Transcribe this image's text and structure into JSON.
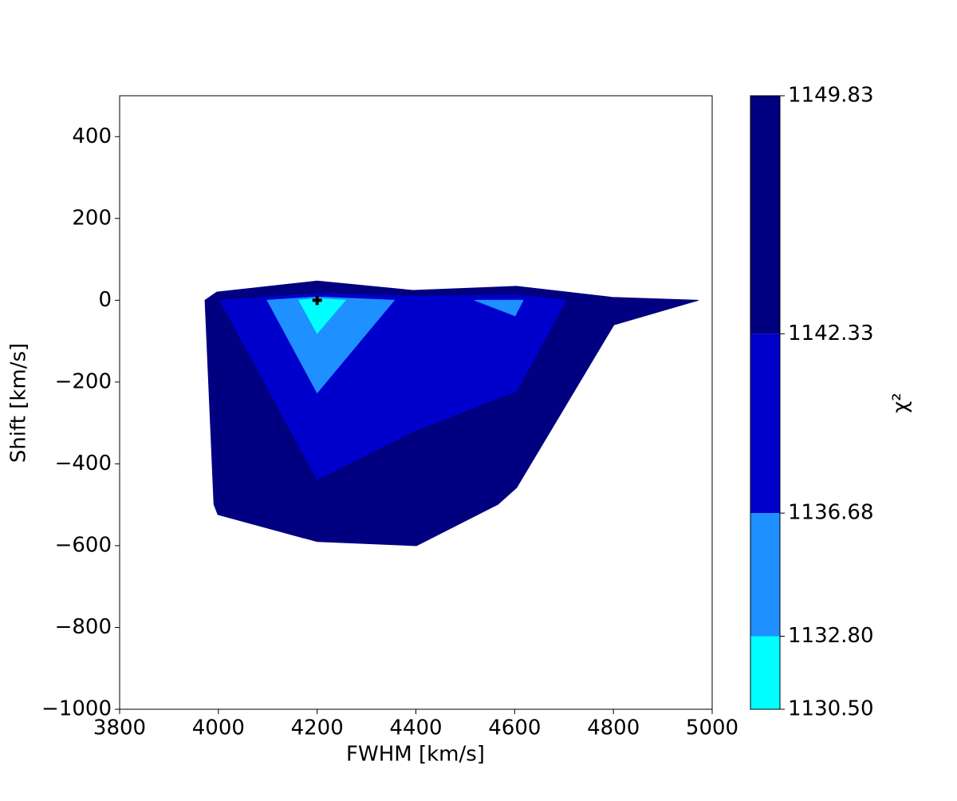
{
  "chart_data": {
    "type": "contour",
    "xlabel": "FWHM [km/s]",
    "ylabel": "Shift [km/s]",
    "colorbar_label": "χ²",
    "xlim": [
      3800,
      5000
    ],
    "xticks": [
      3800,
      4000,
      4200,
      4400,
      4600,
      4800,
      5000
    ],
    "ylim": [
      -1000,
      500
    ],
    "yticks": [
      {
        "value": -1000,
        "label": "−1000"
      },
      {
        "value": -800,
        "label": "−800"
      },
      {
        "value": -600,
        "label": "−600"
      },
      {
        "value": -400,
        "label": "−400"
      },
      {
        "value": -200,
        "label": "−200"
      },
      0,
      200,
      400
    ],
    "clim": [
      1130.5,
      1149.83
    ],
    "cticks": [
      {
        "value": 1130.5,
        "label": "1130.50"
      },
      {
        "value": 1132.8,
        "label": "1132.80"
      },
      1136.68,
      1142.33,
      1149.83
    ],
    "colors": [
      "#00ffff",
      "#1e90ff",
      "#0000cd",
      "#000080"
    ],
    "regions": [
      {
        "color": "#000080",
        "x": [
          3973,
          3997,
          4200,
          4394,
          4604,
          4798,
          4972,
          4801,
          4604,
          4566,
          4401,
          4200,
          3999,
          3991
        ],
        "y": [
          0,
          20,
          47,
          24,
          34,
          7,
          0,
          -60,
          -458,
          -499,
          -600,
          -590,
          -524,
          -499
        ]
      },
      {
        "color": "#0000cd",
        "x": [
          4003,
          4200,
          4394,
          4604,
          4704,
          4604,
          4397,
          4200
        ],
        "y": [
          0,
          16,
          10,
          12,
          0,
          -222,
          -319,
          -438
        ]
      },
      {
        "color": "#1e90ff",
        "x": [
          4099,
          4200,
          4356,
          4200
        ],
        "y": [
          0,
          8,
          0,
          -226
        ]
      },
      {
        "color": "#1e90ff",
        "x": [
          4519,
          4617,
          4601
        ],
        "y": [
          0,
          0,
          -38
        ]
      },
      {
        "color": "#00ffff",
        "x": [
          4163,
          4200,
          4257,
          4200
        ],
        "y": [
          0,
          4,
          0,
          -81
        ]
      }
    ],
    "marker": {
      "x": 4200,
      "y": 0,
      "color": "#000000"
    }
  }
}
